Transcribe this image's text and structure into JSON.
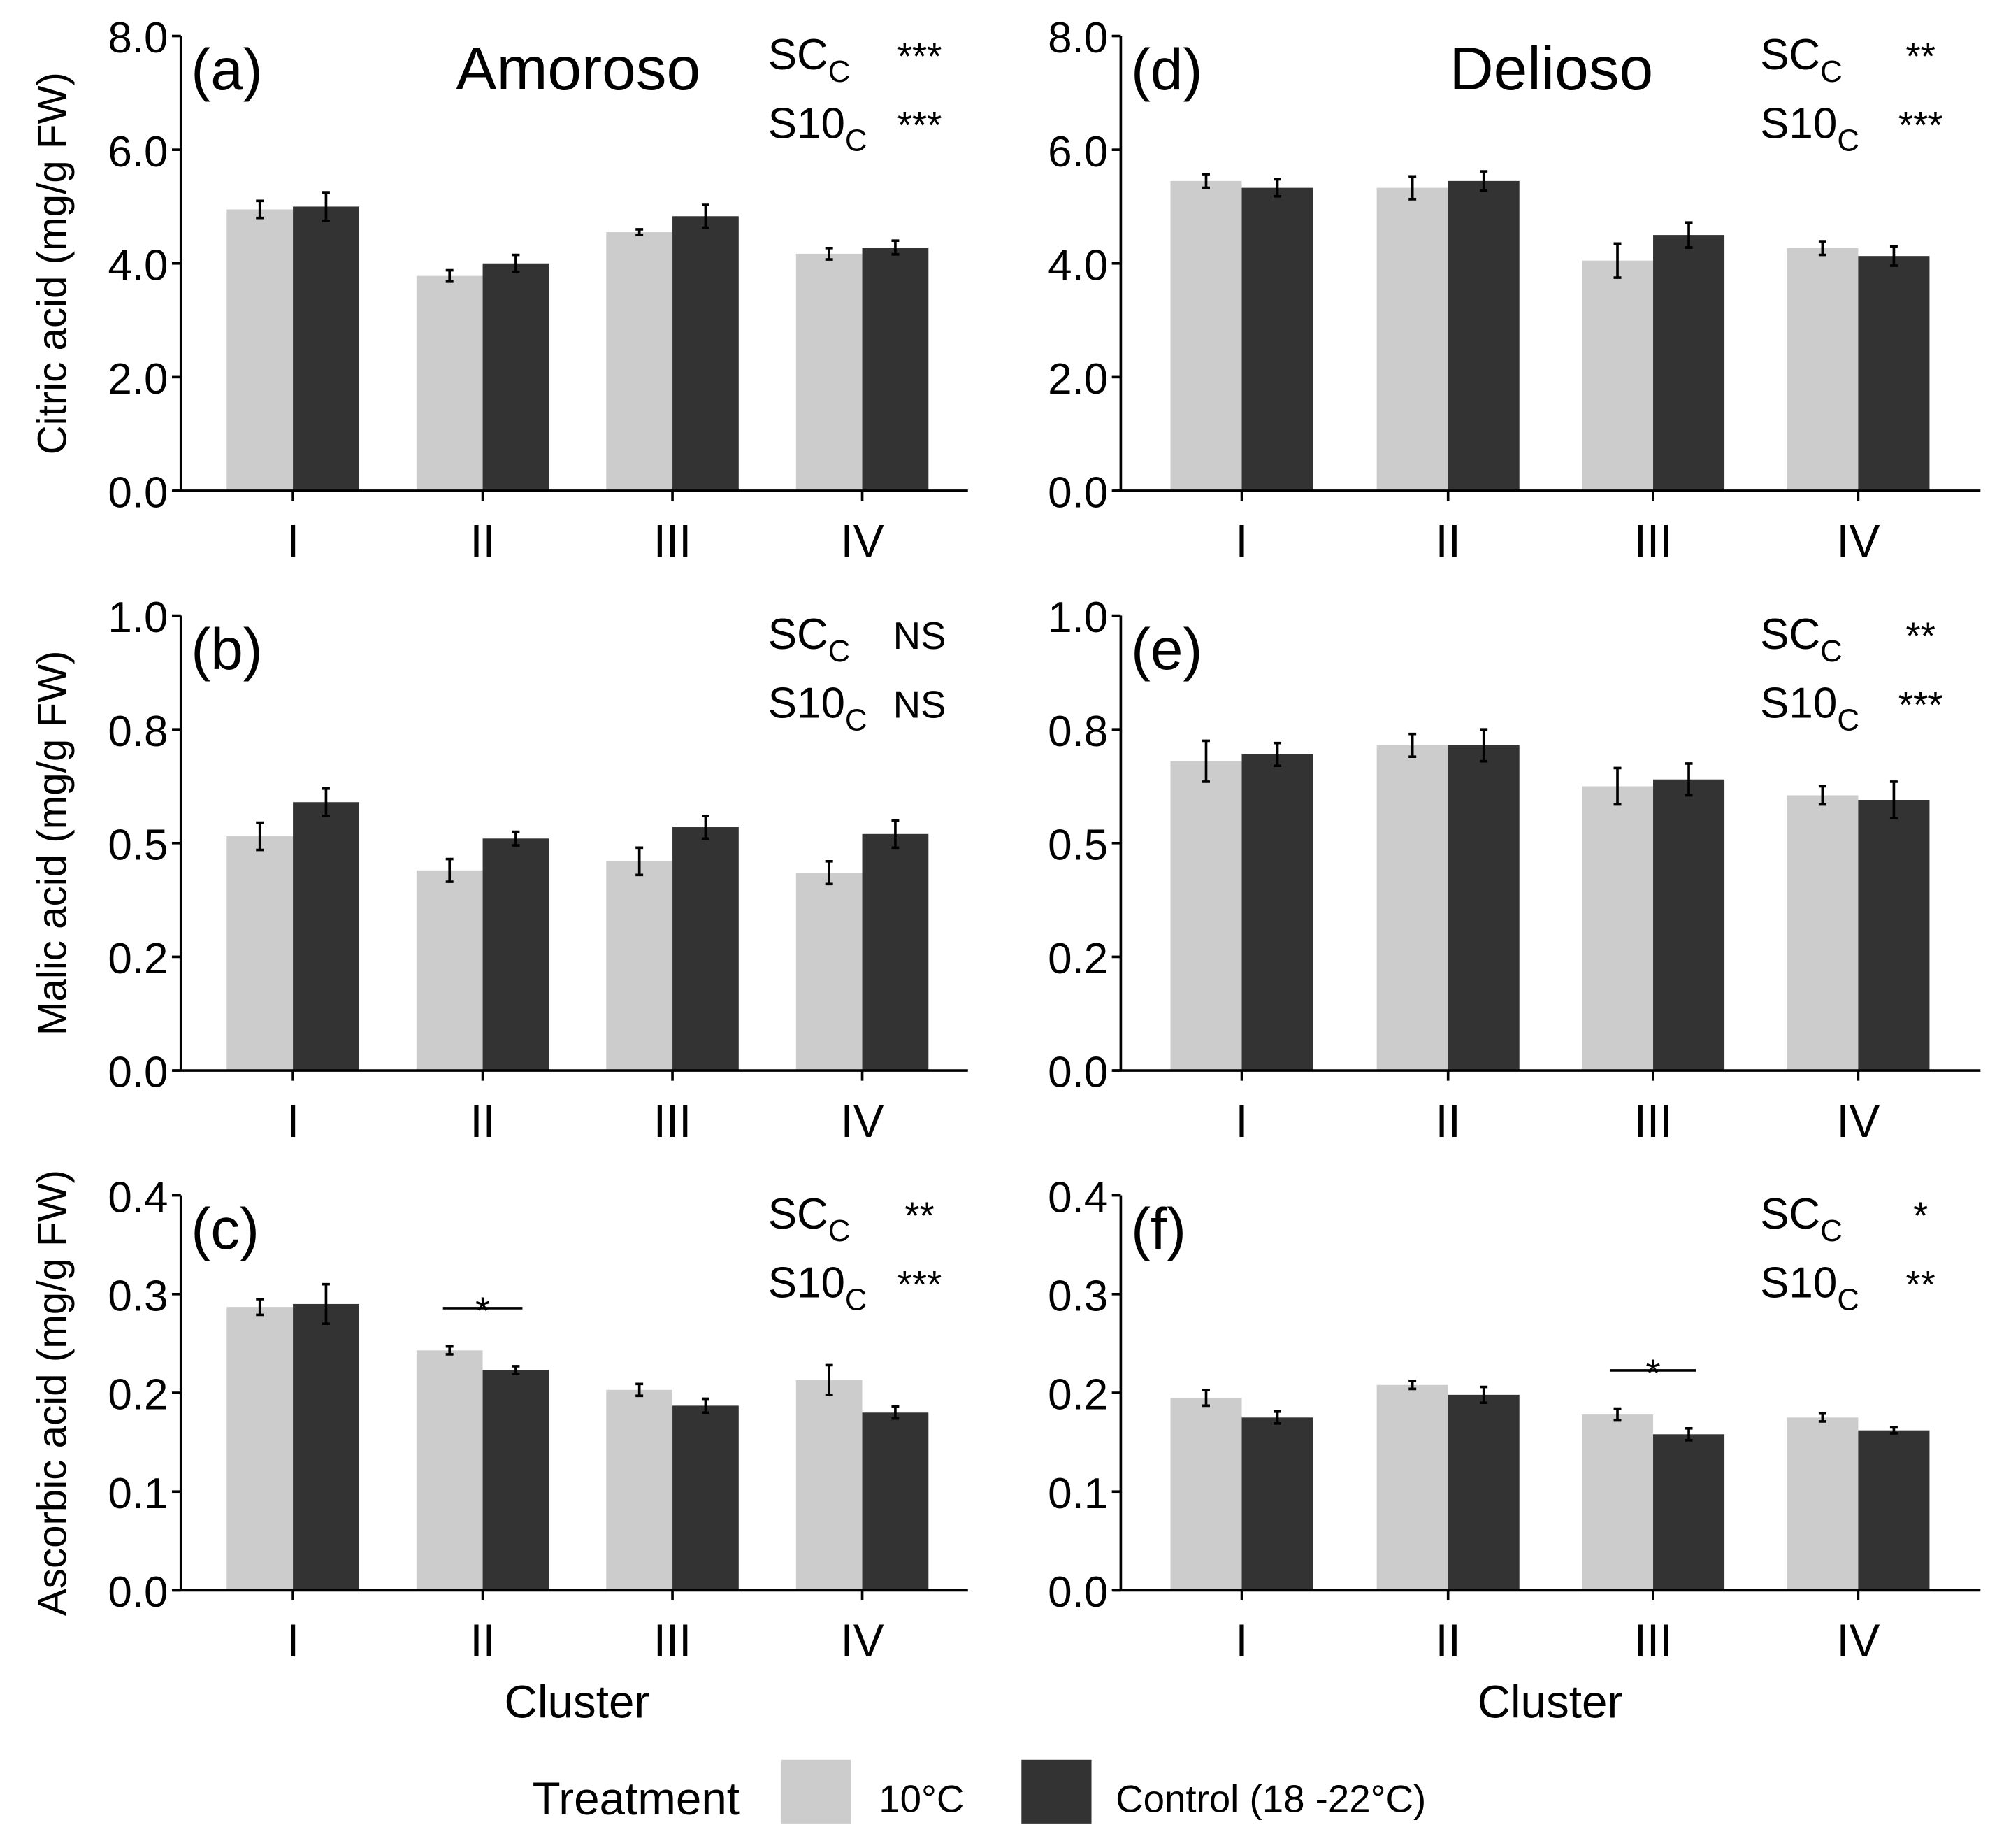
{
  "colors": {
    "cold": "#cccccc",
    "control": "#333333",
    "axis": "#000000"
  },
  "legend": {
    "title": "Treatment",
    "items": [
      "10°C",
      "Control (18 -22°C)"
    ]
  },
  "xlabel": "Cluster",
  "chart_data": [
    {
      "type": "bar",
      "panel": "(a)",
      "title": "Amoroso",
      "ylabel": "Citric acid (mg/g FW)",
      "categories": [
        "I",
        "II",
        "III",
        "IV"
      ],
      "ylim": [
        0,
        8
      ],
      "yticks": [
        0,
        2,
        4,
        6,
        8
      ],
      "yticklabels": [
        "0.0",
        "2.0",
        "4.0",
        "6.0",
        "8.0"
      ],
      "series": [
        {
          "name": "10°C",
          "values": [
            4.95,
            3.78,
            4.55,
            4.17
          ],
          "errors": [
            0.15,
            0.1,
            0.05,
            0.1
          ]
        },
        {
          "name": "Control (18 -22°C)",
          "values": [
            5.0,
            4.0,
            4.83,
            4.28
          ],
          "errors": [
            0.25,
            0.15,
            0.2,
            0.12
          ]
        }
      ],
      "stats": [
        {
          "label": "SC",
          "sub": "C",
          "sig": "***"
        },
        {
          "label": "S10",
          "sub": "C",
          "sig": "***"
        }
      ],
      "pair_sig": []
    },
    {
      "type": "bar",
      "panel": "(b)",
      "title": "",
      "ylabel": "Malic acid (mg/g FW)",
      "categories": [
        "I",
        "II",
        "III",
        "IV"
      ],
      "ylim": [
        0,
        1
      ],
      "yticks": [
        0,
        0.25,
        0.5,
        0.75,
        1
      ],
      "yticklabels": [
        "0.0",
        "0.2",
        "0.5",
        "0.8",
        "1.0"
      ],
      "series": [
        {
          "name": "10°C",
          "values": [
            0.515,
            0.44,
            0.46,
            0.435
          ],
          "errors": [
            0.03,
            0.025,
            0.03,
            0.025
          ]
        },
        {
          "name": "Control (18 -22°C)",
          "values": [
            0.59,
            0.51,
            0.535,
            0.52
          ],
          "errors": [
            0.03,
            0.015,
            0.025,
            0.03
          ]
        }
      ],
      "stats": [
        {
          "label": "SC",
          "sub": "C",
          "sig": "NS"
        },
        {
          "label": "S10",
          "sub": "C",
          "sig": "NS"
        }
      ],
      "pair_sig": []
    },
    {
      "type": "bar",
      "panel": "(c)",
      "title": "",
      "ylabel": "Ascorbic acid (mg/g FW)",
      "categories": [
        "I",
        "II",
        "III",
        "IV"
      ],
      "ylim": [
        0,
        0.4
      ],
      "yticks": [
        0,
        0.1,
        0.2,
        0.3,
        0.4
      ],
      "yticklabels": [
        "0.0",
        "0.1",
        "0.2",
        "0.3",
        "0.4"
      ],
      "series": [
        {
          "name": "10°C",
          "values": [
            0.287,
            0.243,
            0.203,
            0.213
          ],
          "errors": [
            0.008,
            0.004,
            0.006,
            0.015
          ]
        },
        {
          "name": "Control (18 -22°C)",
          "values": [
            0.29,
            0.223,
            0.187,
            0.18
          ],
          "errors": [
            0.02,
            0.004,
            0.007,
            0.006
          ]
        }
      ],
      "stats": [
        {
          "label": "SC",
          "sub": "C",
          "sig": "**"
        },
        {
          "label": "S10",
          "sub": "C",
          "sig": "***"
        }
      ],
      "pair_sig": [
        {
          "category": "II",
          "label": "*"
        }
      ]
    },
    {
      "type": "bar",
      "panel": "(d)",
      "title": "Delioso",
      "ylabel": "",
      "categories": [
        "I",
        "II",
        "III",
        "IV"
      ],
      "ylim": [
        0,
        8
      ],
      "yticks": [
        0,
        2,
        4,
        6,
        8
      ],
      "yticklabels": [
        "0.0",
        "2.0",
        "4.0",
        "6.0",
        "8.0"
      ],
      "series": [
        {
          "name": "10°C",
          "values": [
            5.45,
            5.33,
            4.05,
            4.27
          ],
          "errors": [
            0.12,
            0.2,
            0.3,
            0.12
          ]
        },
        {
          "name": "Control (18 -22°C)",
          "values": [
            5.33,
            5.45,
            4.5,
            4.13
          ],
          "errors": [
            0.15,
            0.17,
            0.22,
            0.17
          ]
        }
      ],
      "stats": [
        {
          "label": "SC",
          "sub": "C",
          "sig": "**"
        },
        {
          "label": "S10",
          "sub": "C",
          "sig": "***"
        }
      ],
      "pair_sig": []
    },
    {
      "type": "bar",
      "panel": "(e)",
      "title": "",
      "ylabel": "",
      "categories": [
        "I",
        "II",
        "III",
        "IV"
      ],
      "ylim": [
        0,
        1
      ],
      "yticks": [
        0,
        0.25,
        0.5,
        0.75,
        1
      ],
      "yticklabels": [
        "0.0",
        "0.2",
        "0.5",
        "0.8",
        "1.0"
      ],
      "series": [
        {
          "name": "10°C",
          "values": [
            0.68,
            0.715,
            0.625,
            0.605
          ],
          "errors": [
            0.045,
            0.025,
            0.04,
            0.02
          ]
        },
        {
          "name": "Control (18 -22°C)",
          "values": [
            0.695,
            0.715,
            0.64,
            0.595
          ],
          "errors": [
            0.025,
            0.035,
            0.035,
            0.04
          ]
        }
      ],
      "stats": [
        {
          "label": "SC",
          "sub": "C",
          "sig": "**"
        },
        {
          "label": "S10",
          "sub": "C",
          "sig": "***"
        }
      ],
      "pair_sig": []
    },
    {
      "type": "bar",
      "panel": "(f)",
      "title": "",
      "ylabel": "",
      "categories": [
        "I",
        "II",
        "III",
        "IV"
      ],
      "ylim": [
        0,
        0.4
      ],
      "yticks": [
        0,
        0.1,
        0.2,
        0.3,
        0.4
      ],
      "yticklabels": [
        "0.0",
        "0.1",
        "0.2",
        "0.3",
        "0.4"
      ],
      "series": [
        {
          "name": "10°C",
          "values": [
            0.195,
            0.208,
            0.178,
            0.175
          ],
          "errors": [
            0.008,
            0.004,
            0.006,
            0.004
          ]
        },
        {
          "name": "Control (18 -22°C)",
          "values": [
            0.175,
            0.198,
            0.158,
            0.162
          ],
          "errors": [
            0.006,
            0.008,
            0.006,
            0.003
          ]
        }
      ],
      "stats": [
        {
          "label": "SC",
          "sub": "C",
          "sig": "*"
        },
        {
          "label": "S10",
          "sub": "C",
          "sig": "**"
        }
      ],
      "pair_sig": [
        {
          "category": "III",
          "label": "*"
        }
      ]
    }
  ]
}
